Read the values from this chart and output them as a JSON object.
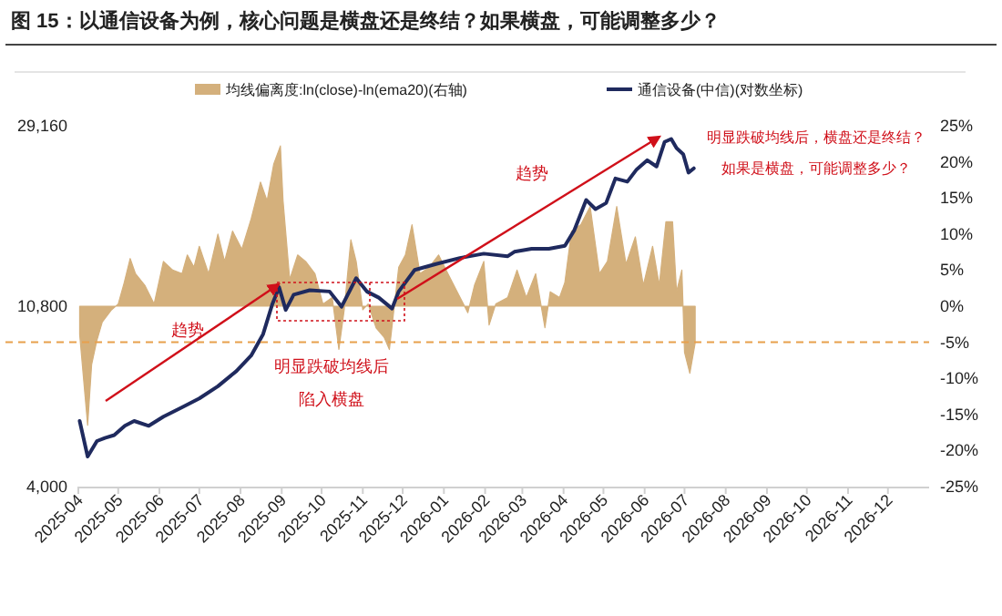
{
  "chart_data": {
    "type": "line",
    "title": "图 15：以通信设备为例，核心问题是横盘还是终结？如果横盘，可能调整多少？",
    "annotations": [
      "趋势",
      "趋势",
      "明显跌破均线后",
      "陷入横盘",
      "明显跌破均线后，横盘还是终结？",
      "如果是横盘，可能调整多少？"
    ],
    "xlim": [
      "2025-04",
      "2027-01"
    ],
    "xticks": [
      "2025-04",
      "2025-05",
      "2025-06",
      "2025-07",
      "2025-08",
      "2025-09",
      "2025-10",
      "2025-11",
      "2025-12",
      "2026-01",
      "2026-02",
      "2026-03",
      "2026-04",
      "2026-05",
      "2026-06",
      "2026-07",
      "2026-08",
      "2026-09",
      "2026-10",
      "2026-11",
      "2026-12"
    ],
    "log": "y",
    "ylim": [
      4000,
      29160
    ],
    "yticks": [
      {
        "value": 4000,
        "label": "4,000"
      },
      {
        "value": 10800,
        "label": "10,800"
      },
      {
        "value": 29160,
        "label": "29,160"
      }
    ],
    "y2lim": [
      -25,
      25
    ],
    "y2ticks": [
      {
        "value": 25,
        "label": "25%"
      },
      {
        "value": 20,
        "label": "20%"
      },
      {
        "value": 15,
        "label": "15%"
      },
      {
        "value": 10,
        "label": "10%"
      },
      {
        "value": 5,
        "label": "5%"
      },
      {
        "value": 0,
        "label": "0%"
      },
      {
        "value": -5,
        "label": "-5%"
      },
      {
        "value": -10,
        "label": "-10%"
      },
      {
        "value": -15,
        "label": "-15%"
      },
      {
        "value": -20,
        "label": "-20%"
      },
      {
        "value": -25,
        "label": "-25%"
      }
    ],
    "ref_lines": [
      {
        "axis": "y2",
        "value": -5,
        "color": "#e8a04c",
        "line_style": "dashed"
      }
    ],
    "legend": "top",
    "grid": false,
    "series": [
      {
        "name": "均线偏离度:ln(close)-ln(ema20)(右轴)",
        "type": "area",
        "axis": "y2",
        "color": "#d4b07c",
        "x": [
          "2025-04-02",
          "2025-04-06",
          "2025-04-08",
          "2025-04-11",
          "2025-04-15",
          "2025-04-19",
          "2025-04-26",
          "2025-05-01",
          "2025-05-05",
          "2025-05-10",
          "2025-05-14",
          "2025-05-21",
          "2025-05-28",
          "2025-06-04",
          "2025-06-11",
          "2025-06-18",
          "2025-06-22",
          "2025-06-27",
          "2025-07-01",
          "2025-07-08",
          "2025-07-15",
          "2025-07-20",
          "2025-07-26",
          "2025-08-02",
          "2025-08-09",
          "2025-08-16",
          "2025-08-21",
          "2025-08-26",
          "2025-08-31",
          "2025-09-02",
          "2025-09-07",
          "2025-09-13",
          "2025-09-19",
          "2025-09-26",
          "2025-10-02",
          "2025-10-09",
          "2025-10-14",
          "2025-10-18",
          "2025-10-23",
          "2025-10-27",
          "2025-11-01",
          "2025-11-05",
          "2025-11-11",
          "2025-11-17",
          "2025-11-21",
          "2025-11-28",
          "2025-12-03",
          "2025-12-08",
          "2025-12-14",
          "2025-12-21",
          "2025-12-28",
          "2026-01-04",
          "2026-01-11",
          "2026-01-19",
          "2026-01-24",
          "2026-01-31",
          "2026-02-04",
          "2026-02-09",
          "2026-02-18",
          "2026-02-25",
          "2026-03-04",
          "2026-03-11",
          "2026-03-18",
          "2026-03-22",
          "2026-03-29",
          "2026-04-02",
          "2026-04-07",
          "2026-04-14",
          "2026-04-21",
          "2026-04-28",
          "2026-05-04",
          "2026-05-11",
          "2026-05-18",
          "2026-05-25",
          "2026-05-31",
          "2026-06-07",
          "2026-06-12",
          "2026-06-17",
          "2026-06-22",
          "2026-06-25",
          "2026-06-29",
          "2026-07-01",
          "2026-07-05",
          "2026-07-09"
        ],
        "values": [
          -3.9,
          -12.3,
          -16.5,
          -8.1,
          -4.7,
          -2.2,
          -0.5,
          0.3,
          2.9,
          6.6,
          4.5,
          2.9,
          0.3,
          6.2,
          5.0,
          4.5,
          7.1,
          5.4,
          8.3,
          4.5,
          10.0,
          6.2,
          10.4,
          7.9,
          12.1,
          17.2,
          14.6,
          19.7,
          22.2,
          14.6,
          3.7,
          7.1,
          6.2,
          4.5,
          0.3,
          1.2,
          -6.0,
          -0.5,
          9.2,
          6.2,
          -0.5,
          0.3,
          -3.0,
          -4.3,
          -6.0,
          5.4,
          7.1,
          11.3,
          4.5,
          5.4,
          7.1,
          4.5,
          2.0,
          -0.9,
          2.9,
          6.2,
          -2.6,
          0.3,
          1.2,
          5.0,
          1.2,
          4.5,
          -3.0,
          2.0,
          1.2,
          3.3,
          10.4,
          11.3,
          13.8,
          4.5,
          6.2,
          13.8,
          5.8,
          9.6,
          2.9,
          8.3,
          2.9,
          11.7,
          11.7,
          2.0,
          5.0,
          -6.4,
          -9.3,
          -5.1
        ]
      },
      {
        "name": "通信设备(中信)(对数坐标)",
        "color": "#1f2a5e",
        "x": [
          "2025-04-02",
          "2025-04-08",
          "2025-04-15",
          "2025-04-21",
          "2025-04-28",
          "2025-05-06",
          "2025-05-13",
          "2025-05-24",
          "2025-06-04",
          "2025-06-18",
          "2025-07-01",
          "2025-07-15",
          "2025-07-29",
          "2025-08-09",
          "2025-08-18",
          "2025-08-25",
          "2025-08-30",
          "2025-09-04",
          "2025-09-10",
          "2025-09-22",
          "2025-10-07",
          "2025-10-16",
          "2025-10-27",
          "2025-11-04",
          "2025-11-13",
          "2025-11-23",
          "2025-11-28",
          "2025-12-10",
          "2025-12-26",
          "2026-01-13",
          "2026-01-31",
          "2026-02-18",
          "2026-02-23",
          "2026-03-08",
          "2026-03-21",
          "2026-04-02",
          "2026-04-09",
          "2026-04-18",
          "2026-04-25",
          "2026-05-03",
          "2026-05-10",
          "2026-05-19",
          "2026-05-26",
          "2026-06-03",
          "2026-06-10",
          "2026-06-16",
          "2026-06-21",
          "2026-06-25",
          "2026-06-30",
          "2026-07-04",
          "2026-07-08"
        ],
        "values": [
          5740,
          4720,
          5140,
          5230,
          5310,
          5590,
          5740,
          5590,
          5880,
          6190,
          6500,
          6950,
          7560,
          8230,
          9260,
          10940,
          11990,
          10580,
          11510,
          11790,
          11710,
          10770,
          12600,
          11710,
          11320,
          10660,
          11710,
          13180,
          13620,
          14080,
          14420,
          14220,
          14570,
          14810,
          14810,
          15060,
          16380,
          19380,
          18430,
          19050,
          21810,
          21430,
          22930,
          24120,
          23300,
          26670,
          27110,
          25780,
          24940,
          22540,
          23070
        ]
      }
    ]
  }
}
